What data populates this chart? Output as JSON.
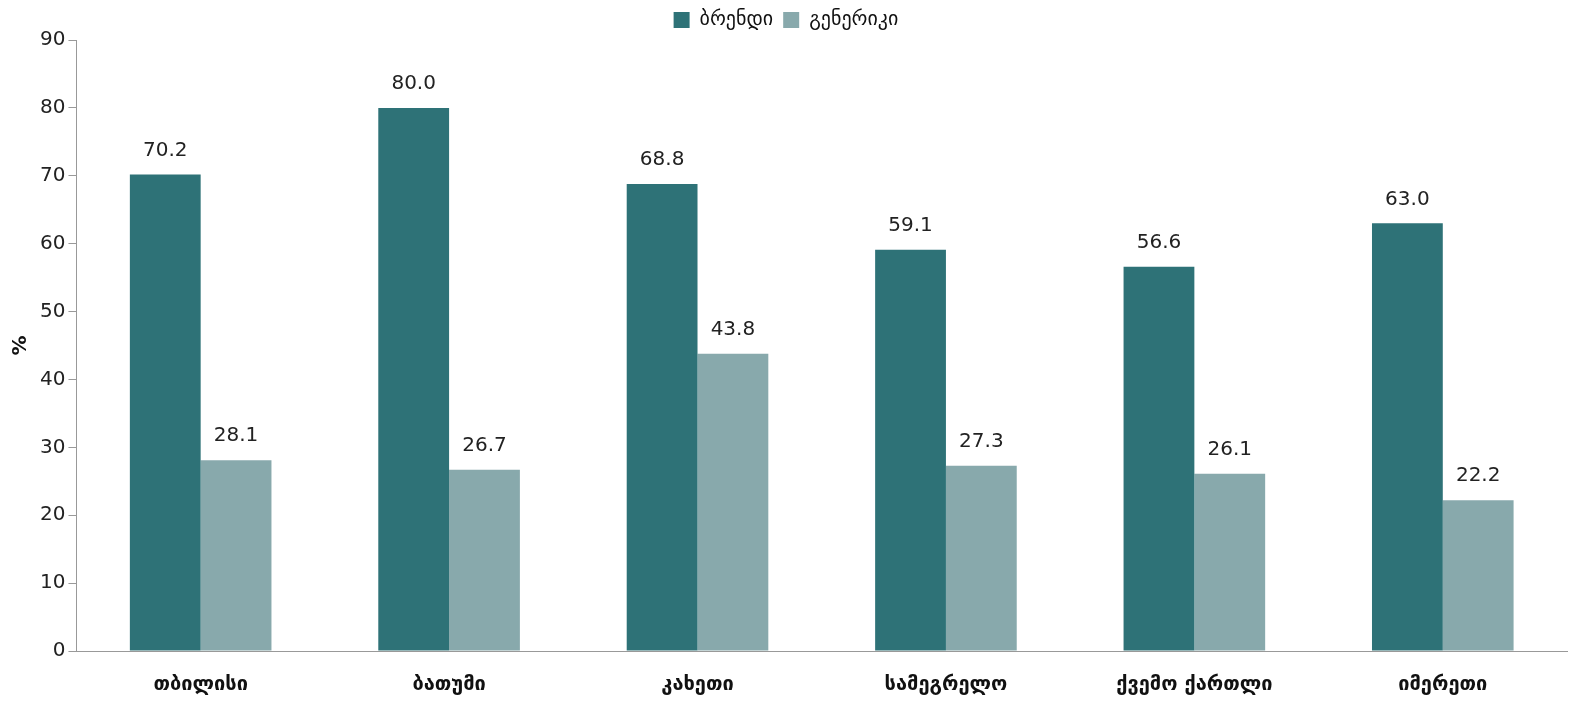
{
  "chart_data": {
    "type": "bar",
    "ylabel": "%",
    "categories": [
      "თბილისი",
      "ბათუმი",
      "კახეთი",
      "სამეგრელო",
      "ქვემო ქართლი",
      "იმერეთი"
    ],
    "series": [
      {
        "name": "ბრენდი",
        "color": "#2e7277",
        "values": [
          70.2,
          80.0,
          68.8,
          59.1,
          56.6,
          63.0
        ],
        "value_labels": [
          "70.2",
          "80.0",
          "68.8",
          "59.1",
          "56.6",
          "63.0"
        ]
      },
      {
        "name": "გენერიკი",
        "color": "#88a9ac",
        "values": [
          28.1,
          26.7,
          43.8,
          27.3,
          26.1,
          22.2
        ],
        "value_labels": [
          "28.1",
          "26.7",
          "43.8",
          "27.3",
          "26.1",
          "22.2"
        ]
      }
    ],
    "ylim": [
      0,
      90
    ],
    "yticks": [
      0,
      10,
      20,
      30,
      40,
      50,
      60,
      70,
      80,
      90
    ],
    "grid": false,
    "legend": "top"
  }
}
